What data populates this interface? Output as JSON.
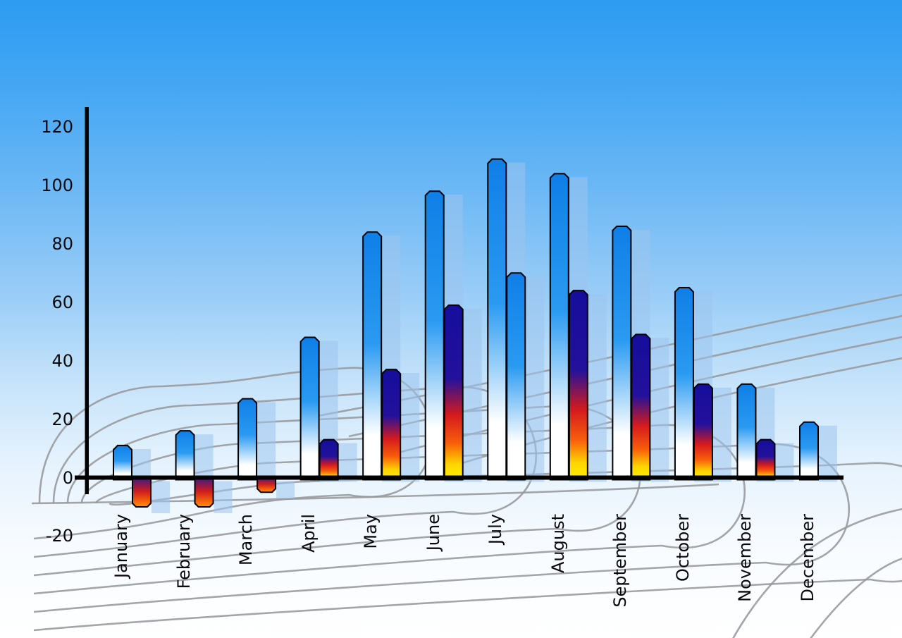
{
  "chart_data": {
    "type": "bar",
    "title": "",
    "xlabel": "",
    "ylabel": "",
    "legend_position": "none",
    "categories": [
      "January",
      "February",
      "March",
      "April",
      "May",
      "June",
      "July",
      "August",
      "September",
      "October",
      "November",
      "December"
    ],
    "series": [
      {
        "name": "primary-blue-gradient-bars",
        "values": [
          11,
          16,
          27,
          48,
          84,
          98,
          109,
          104,
          86,
          65,
          32,
          19
        ]
      },
      {
        "name": "secondary-heat-gradient-bars",
        "values": [
          -10,
          -10,
          -5,
          13,
          37,
          59,
          70,
          64,
          49,
          32,
          13,
          null
        ]
      }
    ],
    "secondary_bar_styles": [
      "heat",
      "heat",
      "heat",
      "heat",
      "heat",
      "heat",
      "blue",
      "heat",
      "heat",
      "heat",
      "heat",
      null
    ],
    "y_tick_labels": [
      120,
      100,
      80,
      60,
      40,
      20,
      0,
      -20
    ],
    "ylim": [
      -20,
      120
    ],
    "grid": "decorative curved gray perspective mesh behind bars",
    "background": "sky blue gradient fading to white at bottom",
    "bar_effects": "each bar has black outline, chamfered top corners and a translucent light-blue drop shadow offset right"
  },
  "colors": {
    "sky_top": "#2d9cf2",
    "sky_bottom": "#ffffff",
    "bar_blue_top": "#0f7fe8",
    "bar_blue_mid": "#2a9af1",
    "bar_blue_fade": "#ffffff",
    "heat_navy": "#17109c",
    "heat_red": "#d51a1d",
    "heat_orange": "#ff8a00",
    "heat_yellow": "#fff200",
    "shadow_blue": "#9cc4ee",
    "grid_line": "#97999c",
    "axis": "#000000",
    "label_text": "#0a0a0c"
  }
}
